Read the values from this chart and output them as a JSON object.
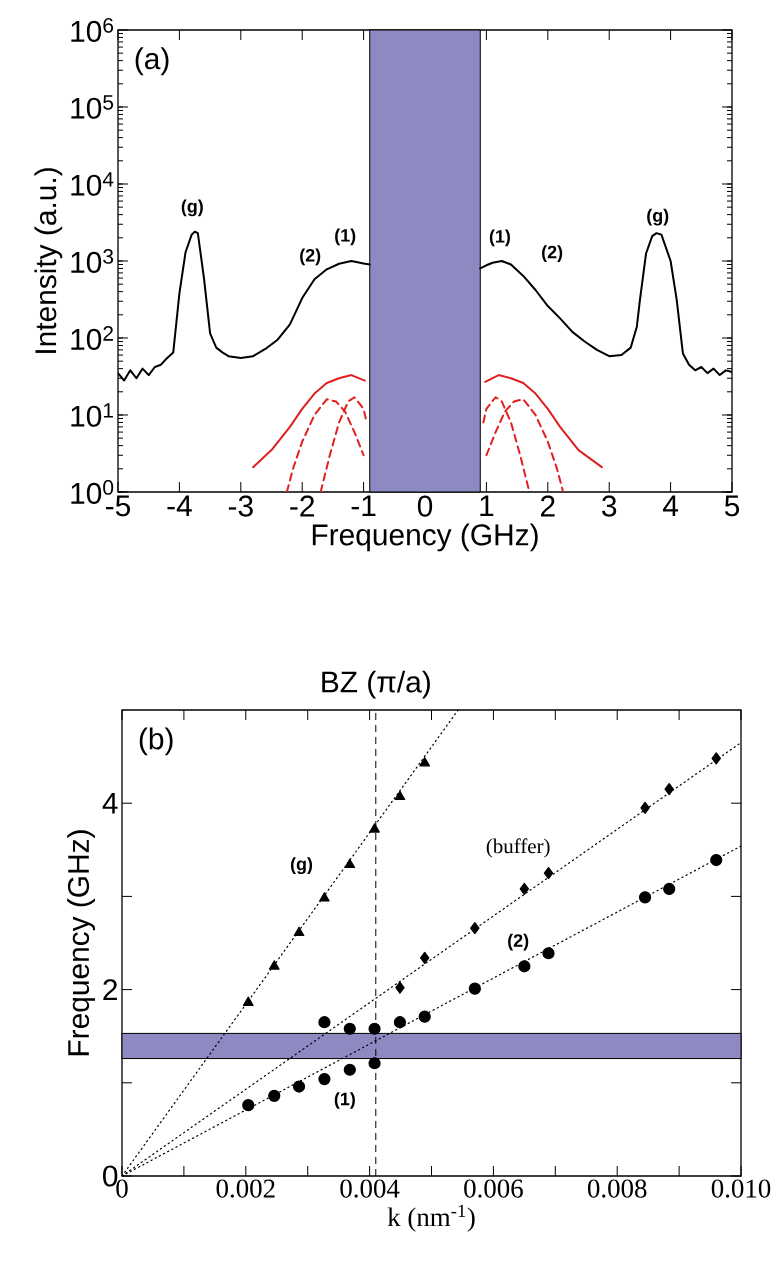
{
  "chart_data": [
    {
      "type": "line",
      "xlabel": "Frequency (GHz)",
      "ylabel": "Intensity (a.u.)",
      "log": "y",
      "xlim": [
        -5,
        5
      ],
      "ylim": [
        1,
        1000000
      ],
      "xticks": [
        -5,
        -4,
        -3,
        -2,
        -1,
        0,
        1,
        2,
        3,
        4,
        5
      ],
      "yticks": [
        {
          "value": 1,
          "label": "10$^{0}$"
        },
        {
          "value": 10,
          "label": "10$^{1}$"
        },
        {
          "value": 100,
          "label": "10$^{2}$"
        },
        {
          "value": 1000,
          "label": "10$^{3}$"
        },
        {
          "value": 10000,
          "label": "10$^{4}$"
        },
        {
          "value": 100000,
          "label": "10$^{5}$"
        },
        {
          "value": 1000000,
          "label": "10$^{6}$"
        }
      ],
      "bands": [
        {
          "axis": "x",
          "from": -0.9,
          "to": 0.9,
          "color": "#8c8ac0"
        }
      ],
      "annotations": [
        "(a)",
        "(g)",
        "(2)",
        "(1)",
        "(1)",
        "(2)",
        "(g)"
      ],
      "series": [
        {
          "color": "#000000",
          "line_style": "solid",
          "x": [
            -5,
            -4.9,
            -4.8,
            -4.7,
            -4.6,
            -4.5,
            -4.4,
            -4.3,
            -4.2,
            -4.1,
            -4.0,
            -3.9,
            -3.8,
            -3.75,
            -3.7,
            -3.6,
            -3.5,
            -3.4,
            -3.3,
            -3.2,
            -3.0,
            -2.8,
            -2.6,
            -2.4,
            -2.2,
            -2.0,
            -1.8,
            -1.6,
            -1.4,
            -1.2,
            -1.0,
            -0.9,
            0,
            0.9,
            1.0,
            1.1,
            1.25,
            1.4,
            1.6,
            1.8,
            2.0,
            2.2,
            2.4,
            2.6,
            2.8,
            3.0,
            3.2,
            3.35,
            3.45,
            3.5,
            3.6,
            3.7,
            3.77,
            3.85,
            4.0,
            4.1,
            4.2,
            4.3,
            4.4,
            4.5,
            4.6,
            4.7,
            4.8,
            4.9,
            5.0
          ],
          "values": [
            35,
            28,
            38,
            30,
            40,
            33,
            42,
            45,
            55,
            65,
            380,
            1300,
            2200,
            2400,
            2300,
            600,
            115,
            75,
            65,
            58,
            55,
            58,
            72,
            95,
            150,
            330,
            580,
            780,
            920,
            1000,
            930,
            900,
            null,
            800,
            880,
            950,
            1000,
            900,
            640,
            420,
            260,
            180,
            120,
            90,
            70,
            58,
            60,
            75,
            140,
            310,
            1250,
            2100,
            2300,
            2200,
            1000,
            310,
            63,
            45,
            38,
            42,
            35,
            40,
            33,
            38,
            36
          ]
        },
        {
          "color": "#e02020",
          "line_style": "solid",
          "x": [
            -2.8,
            -2.5,
            -2.2,
            -2.0,
            -1.8,
            -1.6,
            -1.4,
            -1.2,
            -0.98,
            0,
            0.98,
            1.2,
            1.4,
            1.6,
            1.8,
            2.0,
            2.2,
            2.5,
            2.88
          ],
          "values": [
            2.1,
            3.5,
            7,
            12,
            19,
            26,
            30,
            33,
            28,
            null,
            27,
            33,
            30,
            26,
            19,
            12,
            7,
            3.5,
            2.1
          ]
        },
        {
          "color": "#e02020",
          "line_style": "dashed",
          "x": [
            -2.25,
            -2.15,
            -2.0,
            -1.8,
            -1.6,
            -1.45,
            -1.3,
            -1.15,
            -1.0,
            0,
            1.0,
            1.15,
            1.3,
            1.45,
            1.6,
            1.8,
            2.0,
            2.15,
            2.25
          ],
          "values": [
            1,
            2,
            4.5,
            10,
            16,
            15,
            11,
            6,
            3,
            null,
            3,
            6,
            11,
            15,
            16,
            10,
            4.5,
            2,
            1
          ]
        },
        {
          "color": "#e02020",
          "line_style": "dashed",
          "x": [
            -1.7,
            -1.55,
            -1.4,
            -1.25,
            -1.15,
            -1.0,
            -0.95,
            0,
            0.95,
            1.0,
            1.15,
            1.25,
            1.4,
            1.55,
            1.7
          ],
          "values": [
            1,
            3,
            8,
            15,
            17,
            12,
            8,
            null,
            8,
            12,
            17,
            15,
            8,
            3,
            1
          ]
        }
      ]
    },
    {
      "type": "scatter",
      "xlabel": "k (nm$^{-1}$)",
      "ylabel": "Frequency (GHz)",
      "xlim": [
        0,
        0.01
      ],
      "ylim": [
        0,
        5
      ],
      "xticks": [
        0,
        {
          "value": 0.001,
          "label": null
        },
        0.002,
        {
          "value": 0.003,
          "label": null
        },
        0.004,
        {
          "value": 0.005,
          "label": null
        },
        0.006,
        {
          "value": 0.007,
          "label": null
        },
        0.008,
        {
          "value": 0.009,
          "label": null
        },
        {
          "value": 0.01,
          "label": "0.010"
        }
      ],
      "yticks": [
        0,
        {
          "value": 1,
          "label": null
        },
        2,
        {
          "value": 3,
          "label": null
        },
        4
      ],
      "bands": [
        {
          "axis": "y",
          "from": 1.26,
          "to": 1.53,
          "color": "#8c8ac0"
        }
      ],
      "ref_lines": [
        {
          "axis": "x",
          "value": 0.0041,
          "label": "BZ (π/a)",
          "line_style": "dashed"
        }
      ],
      "annotations": [
        "(b)",
        "(g)",
        "(buffer)",
        "(2)",
        "(1)"
      ],
      "series": [
        {
          "type": "line",
          "color": "#000000",
          "marker": "none",
          "line_style": "dotted",
          "x": [
            0,
            0.00543
          ],
          "values": [
            0,
            5
          ]
        },
        {
          "type": "line",
          "color": "#000000",
          "marker": "none",
          "line_style": "dotted",
          "x": [
            0,
            0.01
          ],
          "values": [
            0,
            4.65
          ]
        },
        {
          "type": "line",
          "color": "#000000",
          "marker": "none",
          "line_style": "dotted",
          "x": [
            0,
            0.01
          ],
          "values": [
            0,
            3.54
          ]
        },
        {
          "color": "#000000",
          "marker": "triangle",
          "x": [
            0.00204,
            0.00246,
            0.00286,
            0.00327,
            0.00368,
            0.00408,
            0.00449,
            0.00489
          ],
          "values": [
            1.86,
            2.25,
            2.61,
            2.98,
            3.34,
            3.72,
            4.07,
            4.43
          ]
        },
        {
          "color": "#000000",
          "marker": "diamond",
          "x": [
            0.00449,
            0.00489,
            0.0057,
            0.0065,
            0.00689,
            0.00845,
            0.00884,
            0.0096
          ],
          "values": [
            2.02,
            2.34,
            2.66,
            3.08,
            3.25,
            3.95,
            4.15,
            4.48
          ]
        },
        {
          "color": "#000000",
          "marker": "circle",
          "x": [
            0.00204,
            0.00246,
            0.00286,
            0.00327,
            0.00368,
            0.00408,
            0.00327,
            0.00368,
            0.00408,
            0.00449,
            0.00489,
            0.0057,
            0.0065,
            0.00689,
            0.00845,
            0.00884,
            0.0096
          ],
          "values": [
            0.76,
            0.86,
            0.96,
            1.04,
            1.14,
            1.21,
            1.65,
            1.58,
            1.58,
            1.65,
            1.71,
            2.01,
            2.25,
            2.39,
            2.99,
            3.08,
            3.39
          ]
        }
      ]
    }
  ]
}
